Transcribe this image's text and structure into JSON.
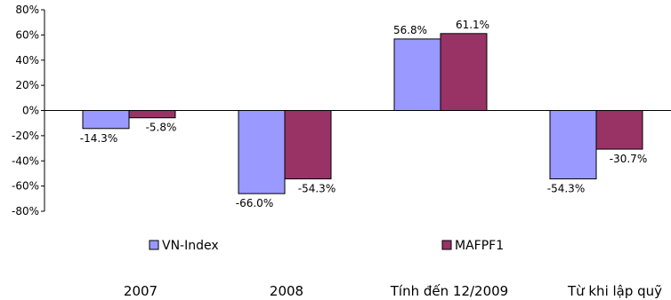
{
  "chart_data": {
    "type": "bar",
    "categories": [
      "2007",
      "2008",
      "Tính đến 12/2009",
      "Từ khi lập quỹ"
    ],
    "series": [
      {
        "name": "VN-Index",
        "values": [
          -14.3,
          -66.0,
          56.8,
          -54.3
        ],
        "labels": [
          "-14.3%",
          "-66.0%",
          "56.8%",
          "-54.3%"
        ],
        "color": "#9999ff"
      },
      {
        "name": "MAFPF1",
        "values": [
          -5.8,
          -54.3,
          61.1,
          -30.7
        ],
        "labels": [
          "-5.8%",
          "-54.3%",
          "61.1%",
          "-30.7%"
        ],
        "color": "#993366"
      }
    ],
    "ylim": [
      -80,
      80
    ],
    "yticks": [
      "80%",
      "60%",
      "40%",
      "20%",
      "0%",
      "-20%",
      "-40%",
      "-60%",
      "-80%"
    ],
    "legend_position": "below plot",
    "grid": false
  }
}
